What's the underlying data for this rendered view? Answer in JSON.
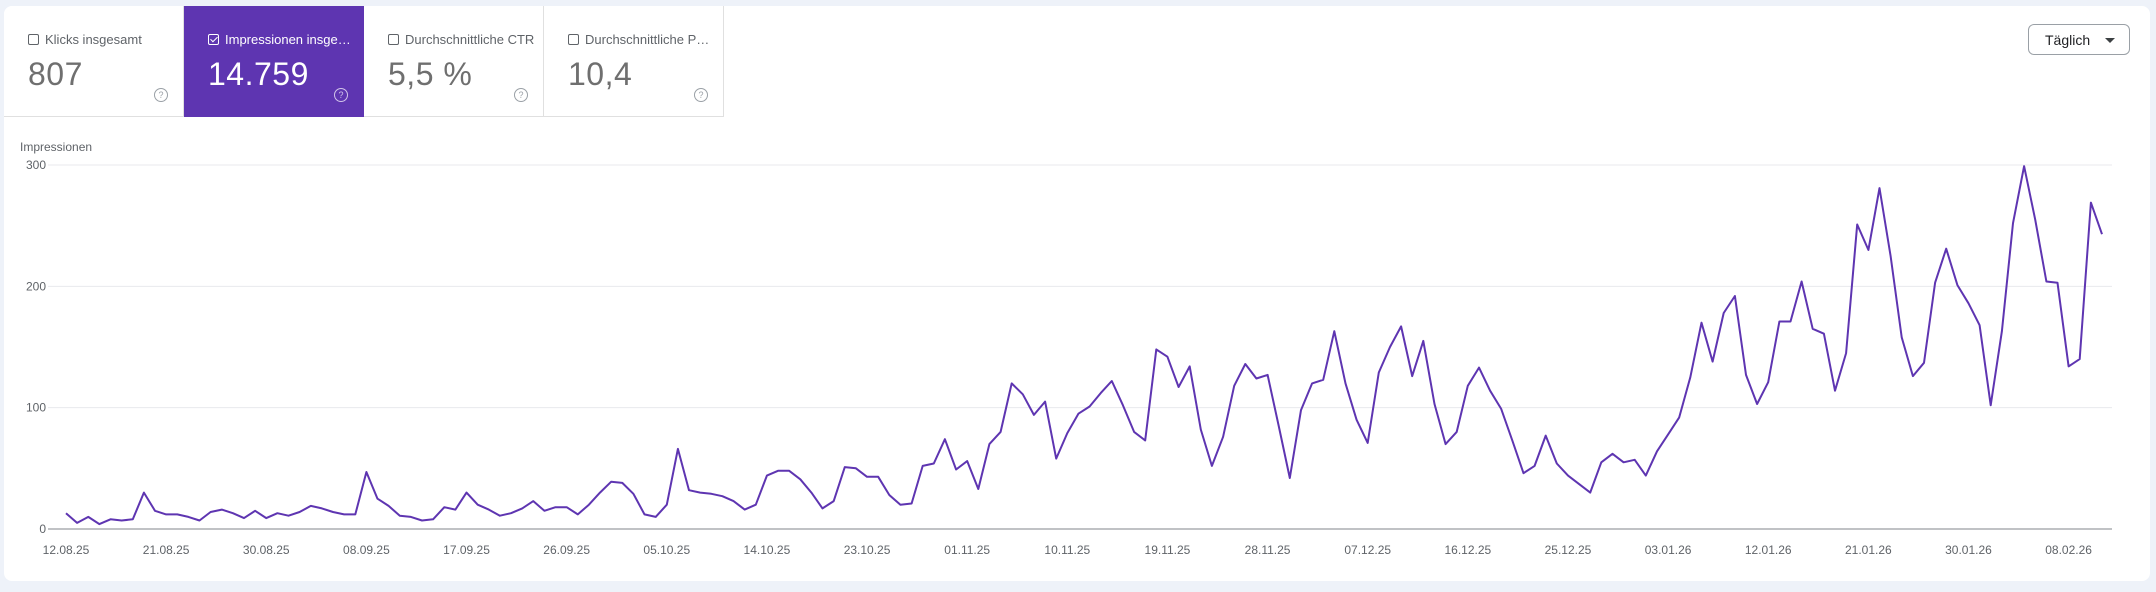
{
  "metrics": [
    {
      "label": "Klicks insgesamt",
      "value": "807",
      "active": false
    },
    {
      "label": "Impressionen insgesamt",
      "value": "14.759",
      "active": true
    },
    {
      "label": "Durchschnittliche CTR",
      "value": "5,5 %",
      "active": false
    },
    {
      "label": "Durchschnittliche Position",
      "value": "10,4",
      "active": false
    }
  ],
  "help_glyph": "?",
  "granularity": {
    "selected": "Täglich"
  },
  "chart_data": {
    "type": "line",
    "ylabel": "Impressionen",
    "ylim": [
      0,
      300
    ],
    "yticks": [
      0,
      100,
      200,
      300
    ],
    "grid": true,
    "line_color": "#5e35b1",
    "x_tick_labels": [
      "12.08.25",
      "21.08.25",
      "30.08.25",
      "08.09.25",
      "17.09.25",
      "26.09.25",
      "05.10.25",
      "14.10.25",
      "23.10.25",
      "01.11.25",
      "10.11.25",
      "19.11.25",
      "28.11.25",
      "07.12.25",
      "16.12.25",
      "25.12.25",
      "03.01.26",
      "12.01.26",
      "21.01.26",
      "30.01.26",
      "08.02.26"
    ],
    "tick_every": 9,
    "series": [
      {
        "values": [
          13,
          5,
          10,
          4,
          8,
          7,
          8,
          30,
          15,
          12,
          12,
          10,
          7,
          14,
          16,
          13,
          9,
          15,
          9,
          13,
          11,
          14,
          19,
          17,
          14,
          12,
          12,
          47,
          25,
          19,
          11,
          10,
          7,
          8,
          18,
          16,
          30,
          20,
          16,
          11,
          13,
          17,
          23,
          15,
          18,
          18,
          12,
          20,
          30,
          39,
          38,
          29,
          12,
          10,
          20,
          66,
          32,
          30,
          29,
          27,
          23,
          16,
          20,
          44,
          48,
          48,
          41,
          30,
          17,
          23,
          51,
          50,
          43,
          43,
          28,
          20,
          21,
          52,
          54,
          74,
          49,
          56,
          33,
          70,
          80,
          120,
          111,
          94,
          105,
          58,
          79,
          95,
          101,
          112,
          122,
          102,
          80,
          73,
          148,
          142,
          117,
          134,
          82,
          52,
          76,
          118,
          136,
          124,
          127,
          85,
          42,
          98,
          120,
          123,
          163,
          120,
          90,
          71,
          129,
          150,
          167,
          126,
          155,
          103,
          70,
          80,
          118,
          133,
          114,
          99,
          73,
          46,
          52,
          77,
          54,
          44,
          37,
          30,
          55,
          62,
          55,
          57,
          44,
          64,
          78,
          92,
          125,
          170,
          138,
          178,
          192,
          127,
          103,
          121,
          171,
          171,
          204,
          165,
          161,
          114,
          145,
          251,
          230,
          281,
          225,
          158,
          126,
          137,
          203,
          231,
          201,
          186,
          168,
          102,
          163,
          252,
          299,
          255,
          204,
          203,
          134,
          140,
          269,
          243
        ]
      }
    ]
  }
}
